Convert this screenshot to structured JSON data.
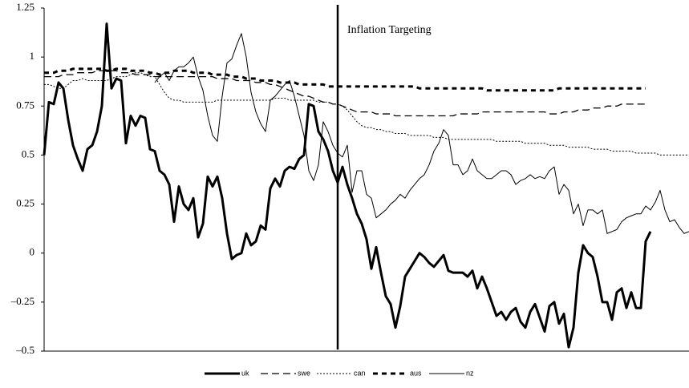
{
  "chart_data": {
    "type": "line",
    "ylim": [
      -0.5,
      1.25
    ],
    "yticks": [
      {
        "value": -0.5,
        "label": "–0.5"
      },
      {
        "value": -0.25,
        "label": "–0.25"
      },
      0,
      0.25,
      0.5,
      0.75,
      1,
      1.25
    ],
    "annotation": {
      "index": 61,
      "text": "Inflation Targeting"
    },
    "legend": "bottom",
    "categories": [
      null,
      null,
      null,
      null,
      null,
      null,
      null,
      null,
      null,
      null,
      null,
      null,
      null,
      null,
      null,
      null,
      null,
      null,
      null,
      null,
      null,
      null,
      null,
      null,
      null,
      null,
      null,
      null,
      null,
      null,
      null,
      null,
      null,
      null,
      null,
      null,
      null,
      null,
      null,
      null,
      null,
      null,
      null,
      null,
      null,
      null,
      null,
      null,
      null,
      null,
      null,
      null,
      null,
      null,
      null,
      null,
      null,
      null,
      null,
      null,
      null,
      null,
      null,
      null,
      null,
      null,
      null,
      null,
      null,
      null,
      null,
      null,
      null,
      null,
      null,
      null,
      null,
      null,
      null,
      null,
      null,
      null,
      null,
      null,
      null,
      null,
      null,
      null,
      null,
      null,
      null,
      null,
      null,
      null,
      null,
      null,
      null,
      null,
      null,
      null,
      null,
      null,
      null,
      null,
      null,
      null,
      null,
      null,
      null,
      null,
      null,
      null,
      null,
      null,
      null,
      null,
      null,
      null,
      null,
      null,
      null,
      null,
      null,
      null,
      null,
      null,
      null,
      null,
      null,
      null,
      null,
      null,
      null,
      null,
      null
    ],
    "series": [
      {
        "name": "uk",
        "color": "#000000",
        "width": 3,
        "dash": "none",
        "values": [
          0.5,
          0.77,
          0.76,
          0.87,
          0.84,
          0.68,
          0.55,
          0.48,
          0.42,
          0.53,
          0.55,
          0.62,
          0.75,
          1.17,
          0.84,
          0.89,
          0.88,
          0.56,
          0.7,
          0.65,
          0.7,
          0.69,
          0.53,
          0.52,
          0.42,
          0.4,
          0.35,
          0.16,
          0.34,
          0.25,
          0.22,
          0.28,
          0.08,
          0.15,
          0.39,
          0.34,
          0.39,
          0.28,
          0.1,
          -0.03,
          -0.01,
          0,
          0.1,
          0.04,
          0.06,
          0.14,
          0.12,
          0.33,
          0.38,
          0.34,
          0.42,
          0.44,
          0.43,
          0.48,
          0.5,
          0.76,
          0.75,
          0.62,
          0.58,
          0.52,
          0.42,
          0.36,
          0.44,
          0.35,
          0.28,
          0.2,
          0.15,
          0.07,
          -0.08,
          0.03,
          -0.1,
          -0.22,
          -0.26,
          -0.38,
          -0.27,
          -0.12,
          -0.08,
          -0.04,
          0,
          -0.02,
          -0.05,
          -0.07,
          -0.04,
          -0.01,
          -0.09,
          -0.1,
          -0.1,
          -0.1,
          -0.12,
          -0.09,
          -0.18,
          -0.12,
          -0.18,
          -0.25,
          -0.32,
          -0.3,
          -0.34,
          -0.3,
          -0.28,
          -0.35,
          -0.38,
          -0.3,
          -0.26,
          -0.33,
          -0.4,
          -0.27,
          -0.25,
          -0.36,
          -0.31,
          -0.48,
          -0.38,
          -0.1,
          0.04,
          0,
          -0.02,
          -0.12,
          -0.25,
          -0.25,
          -0.34,
          -0.2,
          -0.18,
          -0.28,
          -0.2,
          -0.28,
          -0.28,
          0.06,
          0.11,
          null,
          null,
          null,
          null,
          null,
          null,
          null,
          null
        ]
      },
      {
        "name": "swe",
        "color": "#000000",
        "width": 1.3,
        "dash": "9,5",
        "values": [
          0.9,
          0.9,
          0.9,
          0.9,
          0.91,
          0.91,
          0.91,
          0.92,
          0.92,
          0.92,
          0.92,
          0.93,
          0.93,
          0.93,
          0.93,
          0.93,
          0.92,
          0.92,
          0.92,
          0.91,
          0.91,
          0.91,
          0.91,
          0.9,
          0.9,
          0.9,
          0.9,
          0.9,
          0.9,
          0.9,
          0.9,
          0.9,
          0.9,
          0.9,
          0.9,
          0.9,
          0.89,
          0.89,
          0.89,
          0.89,
          0.88,
          0.88,
          0.88,
          0.88,
          0.87,
          0.87,
          0.87,
          0.86,
          0.86,
          0.85,
          0.84,
          0.83,
          0.82,
          0.81,
          0.8,
          0.8,
          0.79,
          0.78,
          0.77,
          0.77,
          0.76,
          0.76,
          0.75,
          0.74,
          0.73,
          0.72,
          0.72,
          0.72,
          0.72,
          0.71,
          0.71,
          0.71,
          0.71,
          0.7,
          0.7,
          0.7,
          0.7,
          0.7,
          0.7,
          0.7,
          0.7,
          0.7,
          0.7,
          0.7,
          0.7,
          0.7,
          0.71,
          0.71,
          0.71,
          0.71,
          0.71,
          0.72,
          0.72,
          0.72,
          0.72,
          0.72,
          0.72,
          0.72,
          0.72,
          0.72,
          0.72,
          0.72,
          0.72,
          0.72,
          0.72,
          0.71,
          0.71,
          0.71,
          0.72,
          0.72,
          0.72,
          0.73,
          0.73,
          0.73,
          0.74,
          0.74,
          0.74,
          0.75,
          0.75,
          0.75,
          0.76,
          0.76,
          0.76,
          0.76,
          0.76,
          0.76,
          null,
          null,
          null,
          null,
          null,
          null,
          null,
          null,
          null
        ]
      },
      {
        "name": "can",
        "color": "#000000",
        "width": 1,
        "dash": "2,2",
        "values": [
          0.86,
          0.86,
          0.85,
          0.84,
          0.84,
          0.86,
          0.88,
          0.88,
          0.89,
          0.88,
          0.88,
          0.88,
          0.88,
          0.88,
          0.89,
          0.9,
          0.9,
          0.9,
          0.91,
          0.92,
          0.92,
          0.91,
          0.9,
          0.9,
          0.86,
          0.82,
          0.79,
          0.78,
          0.78,
          0.77,
          0.77,
          0.77,
          0.77,
          0.77,
          0.77,
          0.77,
          0.78,
          0.78,
          0.78,
          0.78,
          0.78,
          0.78,
          0.78,
          0.78,
          0.78,
          0.78,
          0.78,
          0.78,
          0.79,
          0.79,
          0.79,
          0.78,
          0.78,
          0.78,
          0.78,
          0.78,
          0.78,
          0.77,
          0.77,
          0.77,
          0.76,
          0.76,
          0.75,
          0.73,
          0.7,
          0.67,
          0.65,
          0.64,
          0.64,
          0.63,
          0.63,
          0.62,
          0.62,
          0.61,
          0.61,
          0.61,
          0.6,
          0.6,
          0.6,
          0.6,
          0.6,
          0.59,
          0.59,
          0.59,
          0.58,
          0.58,
          0.58,
          0.58,
          0.58,
          0.58,
          0.58,
          0.58,
          0.58,
          0.58,
          0.57,
          0.57,
          0.57,
          0.57,
          0.57,
          0.57,
          0.56,
          0.56,
          0.56,
          0.56,
          0.56,
          0.55,
          0.55,
          0.55,
          0.55,
          0.54,
          0.54,
          0.54,
          0.54,
          0.54,
          0.53,
          0.53,
          0.53,
          0.53,
          0.52,
          0.52,
          0.52,
          0.52,
          0.52,
          0.51,
          0.51,
          0.51,
          0.51,
          0.51,
          0.5,
          0.5,
          0.5,
          0.5,
          0.5,
          0.5,
          0.5
        ]
      },
      {
        "name": "aus",
        "color": "#000000",
        "width": 3,
        "dash": "6,5",
        "values": [
          0.92,
          0.92,
          0.92,
          0.93,
          0.93,
          0.93,
          0.94,
          0.94,
          0.94,
          0.94,
          0.94,
          0.94,
          0.94,
          0.93,
          0.93,
          0.94,
          0.94,
          0.94,
          0.93,
          0.93,
          0.93,
          0.93,
          0.92,
          0.92,
          0.91,
          0.92,
          0.92,
          0.93,
          0.93,
          0.93,
          0.93,
          0.92,
          0.92,
          0.92,
          0.92,
          0.91,
          0.91,
          0.91,
          0.91,
          0.9,
          0.9,
          0.9,
          0.89,
          0.89,
          0.89,
          0.88,
          0.88,
          0.88,
          0.88,
          0.87,
          0.87,
          0.87,
          0.87,
          0.86,
          0.86,
          0.86,
          0.86,
          0.86,
          0.86,
          0.85,
          0.85,
          0.85,
          0.85,
          0.85,
          0.85,
          0.85,
          0.85,
          0.85,
          0.85,
          0.85,
          0.85,
          0.85,
          0.85,
          0.85,
          0.85,
          0.85,
          0.85,
          0.85,
          0.84,
          0.84,
          0.84,
          0.84,
          0.84,
          0.84,
          0.84,
          0.84,
          0.84,
          0.84,
          0.84,
          0.84,
          0.84,
          0.84,
          0.83,
          0.83,
          0.83,
          0.83,
          0.83,
          0.83,
          0.83,
          0.83,
          0.83,
          0.83,
          0.83,
          0.83,
          0.83,
          0.83,
          0.83,
          0.84,
          0.84,
          0.84,
          0.84,
          0.84,
          0.84,
          0.84,
          0.84,
          0.84,
          0.84,
          0.84,
          0.84,
          0.84,
          0.84,
          0.84,
          0.84,
          0.84,
          0.84,
          0.84,
          null,
          null,
          null,
          null,
          null,
          null,
          null,
          null,
          null
        ]
      },
      {
        "name": "nz",
        "color": "#000000",
        "width": 1,
        "dash": "none",
        "values": [
          null,
          null,
          null,
          null,
          null,
          null,
          null,
          null,
          null,
          null,
          null,
          null,
          null,
          null,
          null,
          null,
          null,
          null,
          null,
          null,
          null,
          null,
          null,
          0.87,
          0.9,
          0.92,
          0.88,
          0.93,
          0.95,
          0.95,
          0.97,
          1.0,
          0.9,
          0.83,
          0.7,
          0.6,
          0.57,
          0.8,
          0.97,
          0.99,
          1.06,
          1.12,
          1.0,
          0.82,
          0.72,
          0.66,
          0.62,
          0.78,
          0.8,
          0.83,
          0.86,
          0.88,
          0.8,
          0.7,
          0.6,
          0.42,
          0.37,
          0.45,
          0.67,
          0.62,
          0.55,
          0.51,
          0.49,
          0.55,
          0.31,
          0.42,
          0.42,
          0.3,
          0.28,
          0.18,
          0.2,
          0.22,
          0.25,
          0.27,
          0.3,
          0.28,
          0.32,
          0.35,
          0.38,
          0.4,
          0.45,
          0.52,
          0.56,
          0.63,
          0.6,
          0.45,
          0.45,
          0.4,
          0.42,
          0.48,
          0.42,
          0.4,
          0.38,
          0.38,
          0.4,
          0.42,
          0.42,
          0.4,
          0.35,
          0.37,
          0.38,
          0.4,
          0.38,
          0.39,
          0.38,
          0.42,
          0.44,
          0.3,
          0.35,
          0.32,
          0.2,
          0.25,
          0.14,
          0.22,
          0.22,
          0.2,
          0.22,
          0.1,
          0.11,
          0.12,
          0.16,
          0.18,
          0.19,
          0.2,
          0.2,
          0.24,
          0.22,
          0.26,
          0.32,
          0.22,
          0.16,
          0.17,
          0.13,
          0.1,
          0.11
        ]
      }
    ]
  }
}
